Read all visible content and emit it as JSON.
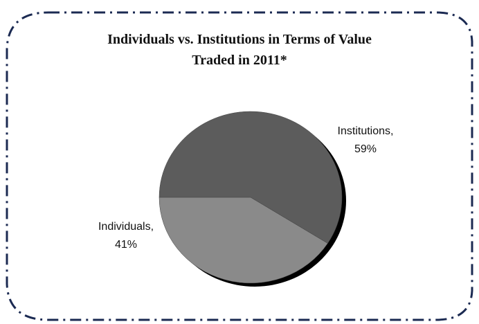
{
  "chart_data": {
    "type": "pie",
    "title": "Individuals vs. Institutions in Terms of Value  Traded in 2011*",
    "categories": [
      "Individuals,",
      "Institutions,"
    ],
    "values": [
      41,
      59
    ],
    "value_labels": [
      "41%",
      "59%"
    ],
    "colors": [
      "#8a8a8a",
      "#5c5c5c"
    ]
  }
}
